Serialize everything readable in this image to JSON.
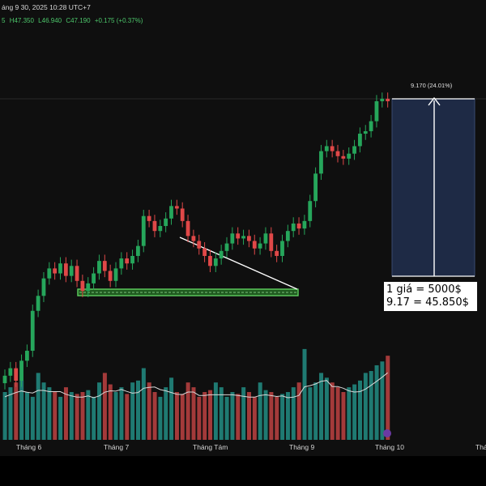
{
  "header": {
    "datetime": "áng 9 30, 2025 10:28 UTC+7",
    "ohlc": {
      "prefix": "5",
      "high": "H47.350",
      "low": "L46.940",
      "close": "C47.190",
      "change": "+0.175 (+0.37%)"
    }
  },
  "annotations": {
    "target_label": "9.170 (24.01%)",
    "note_line1": "1 giá = 5000$",
    "note_line2": "9.17 = 45.850$"
  },
  "colors": {
    "background": "#0f0f0f",
    "up_candle": "#26a65b",
    "down_candle": "#e04848",
    "up_volume": "#1f7a72",
    "down_volume": "#a33a3a",
    "support_zone": "#1f5a1f",
    "support_border": "#5fd05f",
    "measure_box": "#1e2a45",
    "ma_line": "#d8d8d8"
  },
  "chart_data": {
    "type": "candlestick",
    "x_axis_labels": [
      "Tháng 6",
      "Tháng 7",
      "Tháng Tám",
      "Tháng 9",
      "Tháng 10",
      "Tháng"
    ],
    "price_points_close": [
      36.2,
      36.5,
      36.0,
      36.8,
      37.2,
      38.8,
      39.4,
      40.1,
      40.5,
      40.3,
      40.7,
      40.2,
      40.6,
      40.0,
      39.6,
      39.9,
      40.3,
      40.8,
      40.4,
      40.0,
      40.5,
      40.9,
      40.7,
      41.0,
      41.4,
      42.6,
      42.4,
      42.0,
      42.2,
      42.5,
      43.0,
      42.9,
      42.4,
      41.8,
      41.6,
      41.3,
      41.0,
      40.6,
      40.9,
      41.2,
      41.5,
      41.9,
      41.7,
      41.8,
      41.6,
      41.3,
      41.5,
      41.9,
      41.2,
      41.0,
      41.6,
      42.0,
      42.3,
      42.1,
      42.4,
      43.2,
      44.3,
      45.2,
      45.4,
      45.2,
      45.0,
      44.9,
      45.1,
      45.4,
      45.9,
      46.0,
      46.4,
      47.2,
      47.3,
      47.2
    ],
    "volume_relative": [
      0.5,
      0.55,
      0.6,
      0.62,
      0.5,
      0.45,
      0.7,
      0.6,
      0.55,
      0.5,
      0.45,
      0.55,
      0.5,
      0.48,
      0.5,
      0.52,
      0.45,
      0.6,
      0.7,
      0.58,
      0.5,
      0.55,
      0.48,
      0.6,
      0.62,
      0.75,
      0.6,
      0.5,
      0.45,
      0.55,
      0.65,
      0.5,
      0.48,
      0.6,
      0.55,
      0.45,
      0.5,
      0.52,
      0.6,
      0.55,
      0.45,
      0.5,
      0.48,
      0.55,
      0.5,
      0.45,
      0.6,
      0.52,
      0.5,
      0.45,
      0.48,
      0.5,
      0.55,
      0.6,
      0.95,
      0.55,
      0.6,
      0.7,
      0.65,
      0.6,
      0.55,
      0.5,
      0.55,
      0.58,
      0.62,
      0.7,
      0.72,
      0.78,
      0.82,
      0.88
    ],
    "support_zone": [
      41.3,
      41.6
    ],
    "measured_move": 9.17,
    "measured_move_pct": 24.01
  }
}
